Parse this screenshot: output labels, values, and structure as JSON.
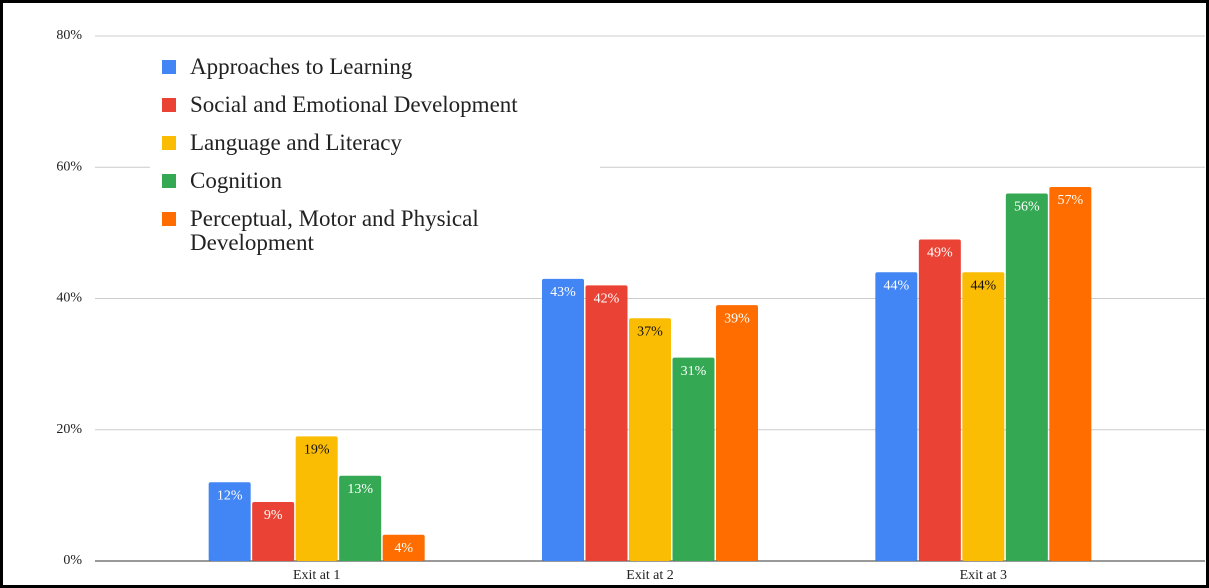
{
  "chart_data": {
    "type": "bar",
    "categories": [
      "Exit at 1",
      "Exit at 2",
      "Exit at 3"
    ],
    "series": [
      {
        "name": "Approaches to Learning",
        "color": "#4285f4",
        "values": [
          12,
          43,
          44
        ],
        "value_labels": [
          "12%",
          "43%",
          "44%"
        ]
      },
      {
        "name": "Social and Emotional Development",
        "color": "#ea4335",
        "values": [
          9,
          42,
          49
        ],
        "value_labels": [
          "9%",
          "42%",
          "49%"
        ]
      },
      {
        "name": "Language and Literacy",
        "color": "#fbbc04",
        "values": [
          19,
          37,
          44
        ],
        "value_labels": [
          "19%",
          "37%",
          "44%"
        ]
      },
      {
        "name": "Cognition",
        "color": "#34a853",
        "values": [
          13,
          31,
          56
        ],
        "value_labels": [
          "13%",
          "31%",
          "56%"
        ]
      },
      {
        "name": "Perceptual, Motor and Physical Development",
        "color": "#ff6d01",
        "values": [
          4,
          39,
          57
        ],
        "value_labels": [
          "4%",
          "39%",
          "57%"
        ]
      }
    ],
    "ylim": [
      0,
      80
    ],
    "yticks": [
      {
        "value": 0,
        "label": "0%"
      },
      {
        "value": 20,
        "label": "20%"
      },
      {
        "value": 40,
        "label": "40%"
      },
      {
        "value": 60,
        "label": "60%"
      },
      {
        "value": 80,
        "label": "80%"
      }
    ],
    "grid": true,
    "legend": "top-left"
  }
}
